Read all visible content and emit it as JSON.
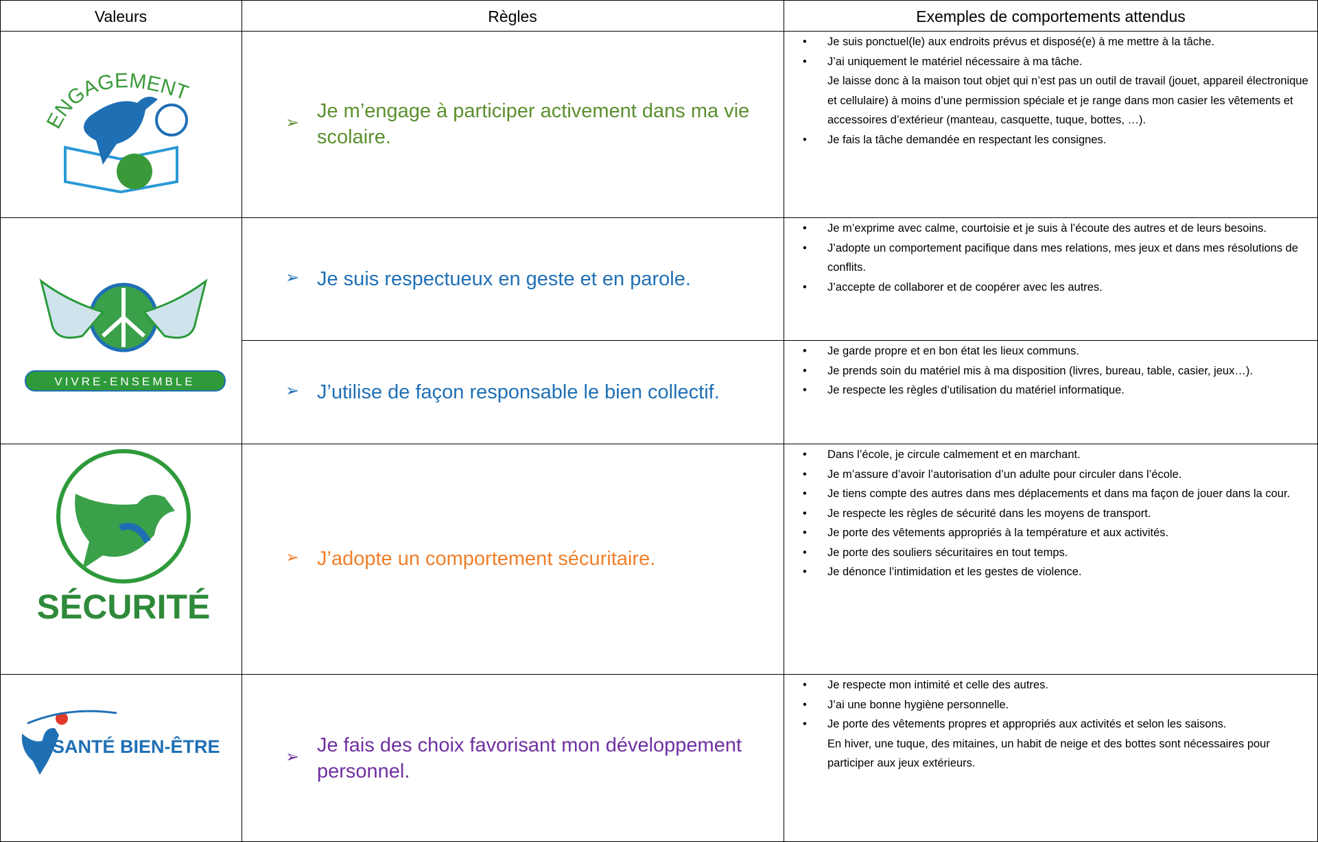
{
  "table": {
    "header": [
      "Valeurs",
      "Règles",
      "Exemples de comportements attendus"
    ],
    "rows": [
      {
        "value": "ENGAGEMENT",
        "color": "#5b8f2e",
        "rules": [
          {
            "text": "Je m’engage à participer activement dans ma vie scolaire.",
            "examples": [
              [
                "Je suis ponctuel(le) aux endroits prévus et disposé(e) à me mettre à la tâche."
              ],
              [
                "J’ai uniquement le matériel nécessaire à ma tâche.",
                "Je laisse donc à la maison tout objet qui n’est pas un outil de travail (jouet, appareil électronique et cellulaire) à moins d’une permission spéciale et je range dans mon casier les vêtements et accessoires d’extérieur (manteau, casquette, tuque, bottes, …)."
              ],
              [
                "Je fais la tâche demandée en respectant les consignes."
              ]
            ]
          }
        ]
      },
      {
        "value": "VIVRE-ENSEMBLE",
        "color": "#1f6fb5",
        "rules": [
          {
            "text": "Je suis respectueux en geste et en parole.",
            "examples": [
              [
                "Je m’exprime avec calme, courtoisie et je suis à l’écoute des autres et de leurs besoins."
              ],
              [
                "J’adopte un comportement pacifique dans mes relations, mes jeux et dans mes résolutions de conflits."
              ],
              [
                "J’accepte de collaborer et de coopérer avec les autres."
              ]
            ]
          },
          {
            "text": "J’utilise de façon responsable le bien collectif.",
            "examples": [
              [
                "Je garde propre et en bon état les lieux communs."
              ],
              [
                "Je prends soin du matériel mis à ma disposition (livres, bureau, table, casier, jeux…)."
              ],
              [
                "Je respecte les règles d’utilisation du matériel informatique."
              ]
            ]
          }
        ]
      },
      {
        "value": "SÉCURITÉ",
        "color": "#f07f2a",
        "rules": [
          {
            "text": "J’adopte un comportement sécuritaire.",
            "examples": [
              [
                "Dans l’école, je circule calmement et en marchant."
              ],
              [
                "Je m’assure d’avoir l’autorisation d’un adulte pour circuler dans l’école."
              ],
              [
                "Je tiens compte des autres dans mes déplacements et dans ma façon de jouer dans la cour."
              ],
              [
                "Je respecte les règles de sécurité dans les moyens de transport."
              ],
              [
                "Je porte des vêtements appropriés à la température et aux activités."
              ],
              [
                "Je porte des souliers sécuritaires en tout temps."
              ],
              [
                "Je dénonce l’intimidation et les gestes de violence."
              ]
            ]
          }
        ]
      },
      {
        "value": "SANTÉ BIEN-ÊTRE",
        "color": "#7030a0",
        "rules": [
          {
            "text": "Je fais des choix favorisant mon développement personnel.",
            "examples": [
              [
                "Je respecte mon intimité et celle des autres."
              ],
              [
                "J’ai une bonne hygiène personnelle."
              ],
              [
                "Je porte des vêtements propres et appropriés aux activités et selon les saisons.",
                "En hiver, une tuque, des mitaines, un habit de neige et des bottes sont nécessaires pour participer aux jeux extérieurs."
              ]
            ]
          }
        ]
      }
    ]
  }
}
